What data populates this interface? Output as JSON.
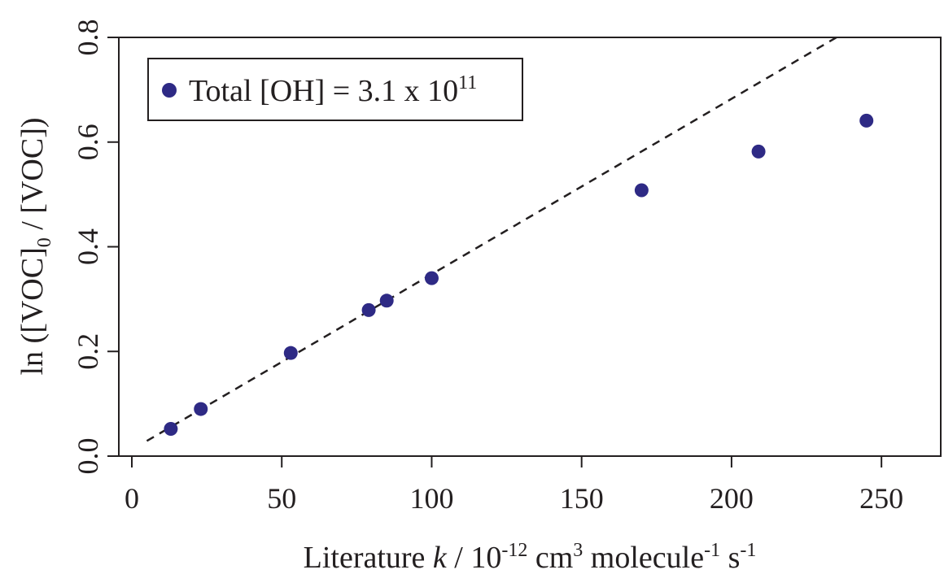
{
  "chart_data": {
    "type": "scatter",
    "xlabel": "Literature k / 10-12 cm3 molecule-1 s-1",
    "ylabel": "ln ([VOC]0 / [VOC])",
    "x_label_parts": {
      "pre": "Literature ",
      "k": "k",
      "mid1": " / 10",
      "sup1": "-12",
      "mid2": " cm",
      "sup2": "3",
      "mid3": " molecule",
      "sup3": "-1",
      "mid4": " s",
      "sup4": "-1"
    },
    "y_label_parts": {
      "pre": "ln ([VOC]",
      "sub": "0",
      "post": " / [VOC])"
    },
    "xlim": [
      0,
      260
    ],
    "ylim": [
      0,
      0.8
    ],
    "x_ticks": [
      "0",
      "50",
      "100",
      "150",
      "200",
      "250"
    ],
    "x_tick_values": [
      0,
      50,
      100,
      150,
      200,
      250
    ],
    "y_ticks": [
      "0.0",
      "0.2",
      "0.4",
      "0.6",
      "0.8"
    ],
    "y_tick_values": [
      0.0,
      0.2,
      0.4,
      0.6,
      0.8
    ],
    "series": [
      {
        "name": "Total [OH] = 3.1 x 1011",
        "color": "#2e2a85",
        "x": [
          13,
          23,
          53,
          79,
          85,
          100,
          170,
          209,
          245
        ],
        "y": [
          0.052,
          0.09,
          0.197,
          0.279,
          0.297,
          0.34,
          0.508,
          0.582,
          0.641
        ]
      }
    ],
    "fit_line": {
      "style": "dashed",
      "color": "#231f20",
      "x": [
        5,
        235
      ],
      "y": [
        0.029,
        0.8
      ]
    },
    "legend": {
      "placement": "top-left",
      "text_pre": "Total [OH] = 3.1 x 10",
      "text_sup": "11"
    },
    "grid": false
  }
}
